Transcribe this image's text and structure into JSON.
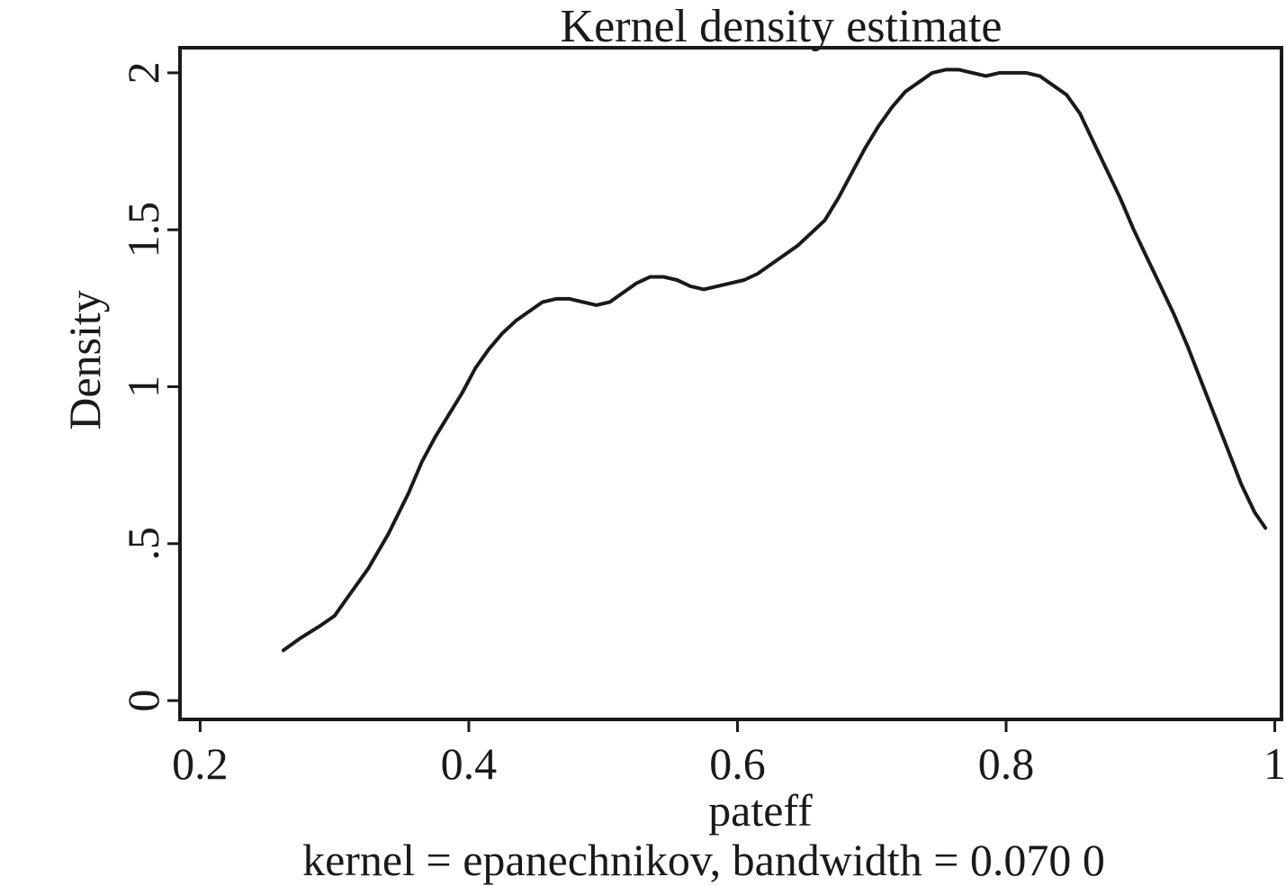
{
  "chart_data": {
    "type": "line",
    "title": "Kernel density estimate",
    "xlabel": "pateff",
    "ylabel": "Density",
    "note": "kernel = epanechnikov, bandwidth = 0.070 0",
    "xlim": [
      0.185,
      1.005
    ],
    "ylim": [
      -0.06,
      2.08
    ],
    "x_ticks": [
      {
        "value": 0.2,
        "label": "0.2"
      },
      {
        "value": 0.4,
        "label": "0.4"
      },
      {
        "value": 0.6,
        "label": "0.6"
      },
      {
        "value": 0.8,
        "label": "0.8"
      },
      {
        "value": 1.0,
        "label": "1"
      }
    ],
    "y_ticks": [
      {
        "value": 0,
        "label": "0"
      },
      {
        "value": 0.5,
        "label": ".5"
      },
      {
        "value": 1,
        "label": "1"
      },
      {
        "value": 1.5,
        "label": "1.5"
      },
      {
        "value": 2,
        "label": "2"
      }
    ],
    "grid": false,
    "series": [
      {
        "color": "#1a1a1a",
        "points": [
          [
            0.262,
            0.16
          ],
          [
            0.275,
            0.2
          ],
          [
            0.29,
            0.24
          ],
          [
            0.3,
            0.27
          ],
          [
            0.31,
            0.33
          ],
          [
            0.325,
            0.42
          ],
          [
            0.34,
            0.53
          ],
          [
            0.355,
            0.66
          ],
          [
            0.365,
            0.76
          ],
          [
            0.375,
            0.84
          ],
          [
            0.385,
            0.91
          ],
          [
            0.395,
            0.98
          ],
          [
            0.405,
            1.06
          ],
          [
            0.415,
            1.12
          ],
          [
            0.425,
            1.17
          ],
          [
            0.435,
            1.21
          ],
          [
            0.445,
            1.24
          ],
          [
            0.455,
            1.27
          ],
          [
            0.465,
            1.28
          ],
          [
            0.475,
            1.28
          ],
          [
            0.485,
            1.27
          ],
          [
            0.495,
            1.26
          ],
          [
            0.505,
            1.27
          ],
          [
            0.515,
            1.3
          ],
          [
            0.525,
            1.33
          ],
          [
            0.535,
            1.35
          ],
          [
            0.545,
            1.35
          ],
          [
            0.555,
            1.34
          ],
          [
            0.565,
            1.32
          ],
          [
            0.575,
            1.31
          ],
          [
            0.585,
            1.32
          ],
          [
            0.595,
            1.33
          ],
          [
            0.605,
            1.34
          ],
          [
            0.615,
            1.36
          ],
          [
            0.625,
            1.39
          ],
          [
            0.635,
            1.42
          ],
          [
            0.645,
            1.45
          ],
          [
            0.655,
            1.49
          ],
          [
            0.665,
            1.53
          ],
          [
            0.675,
            1.6
          ],
          [
            0.685,
            1.68
          ],
          [
            0.695,
            1.76
          ],
          [
            0.705,
            1.83
          ],
          [
            0.715,
            1.89
          ],
          [
            0.725,
            1.94
          ],
          [
            0.735,
            1.97
          ],
          [
            0.745,
            2.0
          ],
          [
            0.755,
            2.01
          ],
          [
            0.765,
            2.01
          ],
          [
            0.775,
            2.0
          ],
          [
            0.785,
            1.99
          ],
          [
            0.795,
            2.0
          ],
          [
            0.805,
            2.0
          ],
          [
            0.815,
            2.0
          ],
          [
            0.825,
            1.99
          ],
          [
            0.835,
            1.96
          ],
          [
            0.845,
            1.93
          ],
          [
            0.855,
            1.87
          ],
          [
            0.865,
            1.78
          ],
          [
            0.875,
            1.69
          ],
          [
            0.885,
            1.6
          ],
          [
            0.895,
            1.5
          ],
          [
            0.905,
            1.41
          ],
          [
            0.915,
            1.32
          ],
          [
            0.925,
            1.23
          ],
          [
            0.935,
            1.13
          ],
          [
            0.945,
            1.02
          ],
          [
            0.955,
            0.91
          ],
          [
            0.965,
            0.8
          ],
          [
            0.975,
            0.69
          ],
          [
            0.985,
            0.6
          ],
          [
            0.993,
            0.55
          ]
        ]
      }
    ]
  }
}
